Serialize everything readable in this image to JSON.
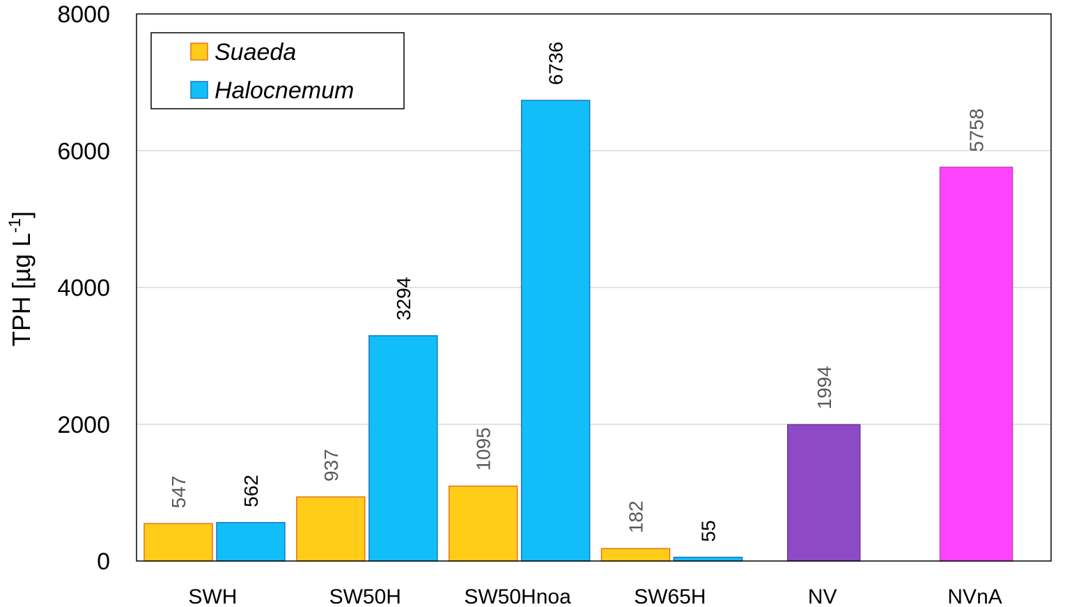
{
  "chart_data": {
    "type": "bar",
    "ylabel": "TPH [µg L",
    "ylabel_sup": "-1",
    "ylabel_end": "]",
    "ylim": [
      0,
      8000
    ],
    "yticks": [
      0,
      2000,
      4000,
      6000,
      8000
    ],
    "ytick_labels": [
      "0",
      "2000",
      "4000",
      "6000",
      "8000"
    ],
    "grid": true,
    "legend_placement": "top-left",
    "categories": [
      "SWH",
      "SW50H",
      "SW50Hnoa",
      "SW65H",
      "NV",
      "NVnA"
    ],
    "series": [
      {
        "name": "Suaeda",
        "color": "#FFCC18",
        "values": [
          547,
          937,
          1095,
          182,
          null,
          null
        ],
        "labels": [
          "547",
          "937",
          "1095",
          "182",
          null,
          null
        ]
      },
      {
        "name": "Halocnemum",
        "color": "#12BEF8",
        "values": [
          562,
          3294,
          6736,
          55,
          null,
          null
        ],
        "labels": [
          "562",
          "3294",
          "6736",
          "55",
          null,
          null
        ]
      },
      {
        "name": "",
        "color": "#8E4AC6",
        "values": [
          null,
          null,
          null,
          null,
          1994,
          null
        ],
        "labels": [
          null,
          null,
          null,
          null,
          "1994",
          null
        ]
      },
      {
        "name": "",
        "color": "#FF44FF",
        "values": [
          null,
          null,
          null,
          null,
          null,
          5758
        ],
        "labels": [
          null,
          null,
          null,
          null,
          null,
          "5758"
        ]
      }
    ],
    "colors": {
      "suaeda_border": "#E87020",
      "halocnemum_border": "#1A78C0",
      "nv_border": "#6A3A9A",
      "nvna_border": "#C040C0",
      "grid": "#D9D9D9",
      "label_gray": "#595959",
      "label_black": "#000000"
    }
  }
}
